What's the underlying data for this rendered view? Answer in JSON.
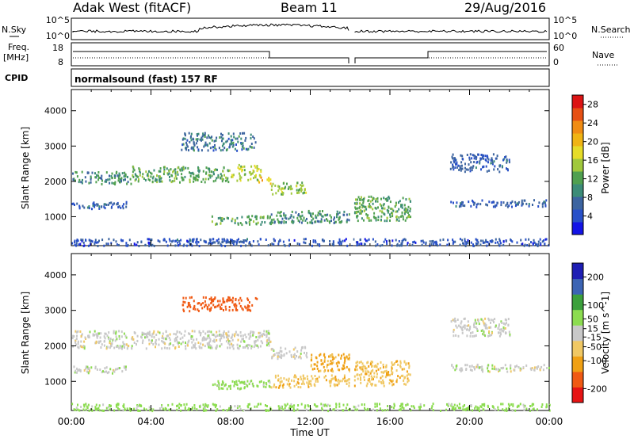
{
  "header": {
    "station": "Adak West (fitACF)",
    "beam": "Beam 11",
    "date": "29/Aug/2016"
  },
  "strips": {
    "nsky_label": "N.Sky",
    "nsearch_label": "N.Search",
    "nsky_ticks": [
      "10^5",
      "10^0"
    ],
    "nsearch_ticks": [
      "10^5",
      "10^0"
    ],
    "freq_label_1": "Freq.",
    "freq_label_2": "[MHz]",
    "freq_ticks": [
      "18",
      "8"
    ],
    "nave_label": "Nave",
    "nave_ticks": [
      "60",
      "0"
    ],
    "cpid_label": "CPID",
    "cpid_text": "normalsound (fast) 157 RF"
  },
  "colors": {
    "power_scale": [
      "#1414e6",
      "#2850c8",
      "#3c64a0",
      "#3c8c78",
      "#50a050",
      "#a0c83c",
      "#e6dc28",
      "#f0b414",
      "#f08c14",
      "#e65014",
      "#dc1414"
    ],
    "velocity_scale": [
      "#e61414",
      "#f05a14",
      "#f0a014",
      "#f0c864",
      "#c8c8c8",
      "#8cdc50",
      "#3ca03c",
      "#3c64b4",
      "#1e1eb4"
    ],
    "gray": "#c8c8c8"
  },
  "chart_data": [
    {
      "type": "heatmap",
      "name": "power_panel",
      "xlabel": "Time UT",
      "ylabel": "Slant Range [km]",
      "x_ticks": [
        "00:00",
        "04:00",
        "08:00",
        "12:00",
        "16:00",
        "20:00",
        "00:00"
      ],
      "xlim_hours": [
        0,
        24
      ],
      "ylim_km": [
        180,
        4600
      ],
      "y_ticks": [
        1000,
        2000,
        3000,
        4000
      ],
      "colorbar": {
        "label": "Power [dB]",
        "ticks": [
          4,
          8,
          12,
          16,
          20,
          24,
          28
        ],
        "range": [
          0,
          30
        ]
      },
      "echo_regions": [
        {
          "t0": 0.0,
          "t1": 2.8,
          "r0": 1250,
          "r1": 1450,
          "level": 6
        },
        {
          "t0": 0.0,
          "t1": 3.0,
          "r0": 1950,
          "r1": 2300,
          "level": 10
        },
        {
          "t0": 3.0,
          "t1": 8.0,
          "r0": 2000,
          "r1": 2450,
          "level": 12
        },
        {
          "t0": 8.0,
          "t1": 9.5,
          "r0": 2050,
          "r1": 2500,
          "level": 16
        },
        {
          "t0": 9.3,
          "t1": 10.0,
          "r0": 1950,
          "r1": 2150,
          "level": 20
        },
        {
          "t0": 10.0,
          "t1": 11.8,
          "r0": 1650,
          "r1": 2000,
          "level": 14
        },
        {
          "t0": 7.0,
          "t1": 10.0,
          "r0": 800,
          "r1": 1050,
          "level": 12
        },
        {
          "t0": 10.0,
          "t1": 14.0,
          "r0": 850,
          "r1": 1200,
          "level": 10
        },
        {
          "t0": 14.2,
          "t1": 17.0,
          "r0": 900,
          "r1": 1600,
          "level": 12
        },
        {
          "t0": 5.5,
          "t1": 9.3,
          "r0": 2900,
          "r1": 3400,
          "level": 8
        },
        {
          "t0": 19.0,
          "t1": 22.0,
          "r0": 2300,
          "r1": 2800,
          "level": 6
        },
        {
          "t0": 19.0,
          "t1": 24.0,
          "r0": 1300,
          "r1": 1500,
          "level": 6
        },
        {
          "t0": 0.0,
          "t1": 24.0,
          "r0": 200,
          "r1": 400,
          "level": 5
        },
        {
          "t0": 5.0,
          "t1": 9.0,
          "r0": 300,
          "r1": 400,
          "level": 6
        }
      ]
    },
    {
      "type": "heatmap",
      "name": "velocity_panel",
      "xlabel": "Time UT",
      "ylabel": "Slant Range [km]",
      "x_ticks": [
        "00:00",
        "04:00",
        "08:00",
        "12:00",
        "16:00",
        "20:00",
        "00:00"
      ],
      "xlim_hours": [
        0,
        24
      ],
      "ylim_km": [
        180,
        4600
      ],
      "y_ticks": [
        1000,
        2000,
        3000,
        4000
      ],
      "colorbar": {
        "label": "Velocity [m s^-1]",
        "ticks": [
          -200,
          -100,
          -50,
          -15,
          15,
          50,
          100,
          200
        ],
        "range": [
          -250,
          250
        ]
      },
      "echo_regions": [
        {
          "t0": 0.0,
          "t1": 2.8,
          "r0": 1250,
          "r1": 1450,
          "vel": 0
        },
        {
          "t0": 0.0,
          "t1": 10.0,
          "r0": 1950,
          "r1": 2450,
          "vel": 0
        },
        {
          "t0": 10.0,
          "t1": 11.8,
          "r0": 1650,
          "r1": 2000,
          "vel": 0
        },
        {
          "t0": 7.0,
          "t1": 10.0,
          "r0": 800,
          "r1": 1050,
          "vel": 30
        },
        {
          "t0": 10.0,
          "t1": 14.0,
          "r0": 850,
          "r1": 1200,
          "vel": -40
        },
        {
          "t0": 14.2,
          "t1": 17.0,
          "r0": 900,
          "r1": 1600,
          "vel": -40
        },
        {
          "t0": 12.0,
          "t1": 14.0,
          "r0": 1300,
          "r1": 1800,
          "vel": -60
        },
        {
          "t0": 5.5,
          "t1": 9.3,
          "r0": 3000,
          "r1": 3400,
          "vel": -150
        },
        {
          "t0": 19.0,
          "t1": 24.0,
          "r0": 1300,
          "r1": 1500,
          "vel": 0
        },
        {
          "t0": 19.0,
          "t1": 22.0,
          "r0": 2300,
          "r1": 2800,
          "vel": 0
        },
        {
          "t0": 0.0,
          "t1": 24.0,
          "r0": 200,
          "r1": 400,
          "vel": 30
        }
      ]
    }
  ]
}
